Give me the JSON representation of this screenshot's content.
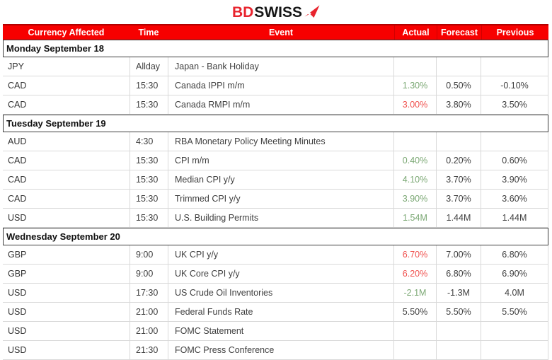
{
  "brand": {
    "name_red": "BD",
    "name_dark": "SWISS",
    "logo_icon": "bdswiss-arrow-icon"
  },
  "colors": {
    "header_bg": "#f70000",
    "header_text": "#ffffff",
    "positive": "#7ba874",
    "negative": "#f0524f",
    "neutral": "#404040",
    "grid": "#d9d9d9",
    "dayborder": "#3c3c3c",
    "brandred": "#e8242e"
  },
  "table": {
    "headers": [
      "Currency Affected",
      "Time",
      "Event",
      "Actual",
      "Forecast",
      "Previous"
    ],
    "sections": [
      {
        "day": "Monday September 18",
        "rows": [
          {
            "currency": "JPY",
            "time": "Allday",
            "event": "Japan - Bank Holiday",
            "actual": "",
            "forecast": "",
            "previous": "",
            "actual_state": "neutral"
          },
          {
            "currency": "CAD",
            "time": "15:30",
            "event": "Canada IPPI m/m",
            "actual": "1.30%",
            "forecast": "0.50%",
            "previous": "-0.10%",
            "actual_state": "positive"
          },
          {
            "currency": "CAD",
            "time": "15:30",
            "event": "Canada RMPI m/m",
            "actual": "3.00%",
            "forecast": "3.80%",
            "previous": "3.50%",
            "actual_state": "negative"
          }
        ]
      },
      {
        "day": "Tuesday September 19",
        "rows": [
          {
            "currency": "AUD",
            "time": "4:30",
            "event": "RBA Monetary Policy Meeting Minutes",
            "actual": "",
            "forecast": "",
            "previous": "",
            "actual_state": "neutral"
          },
          {
            "currency": "CAD",
            "time": "15:30",
            "event": "CPI m/m",
            "actual": "0.40%",
            "forecast": "0.20%",
            "previous": "0.60%",
            "actual_state": "positive"
          },
          {
            "currency": "CAD",
            "time": "15:30",
            "event": "Median CPI y/y",
            "actual": "4.10%",
            "forecast": "3.70%",
            "previous": "3.90%",
            "actual_state": "positive"
          },
          {
            "currency": "CAD",
            "time": "15:30",
            "event": "Trimmed CPI y/y",
            "actual": "3.90%",
            "forecast": "3.70%",
            "previous": "3.60%",
            "actual_state": "positive"
          },
          {
            "currency": "USD",
            "time": "15:30",
            "event": "U.S. Building Permits",
            "actual": "1.54M",
            "forecast": "1.44M",
            "previous": "1.44M",
            "actual_state": "positive"
          }
        ]
      },
      {
        "day": "Wednesday September 20",
        "rows": [
          {
            "currency": "GBP",
            "time": "9:00",
            "event": "UK CPI y/y",
            "actual": "6.70%",
            "forecast": "7.00%",
            "previous": "6.80%",
            "actual_state": "negative"
          },
          {
            "currency": "GBP",
            "time": "9:00",
            "event": "UK Core CPI y/y",
            "actual": "6.20%",
            "forecast": "6.80%",
            "previous": "6.90%",
            "actual_state": "negative"
          },
          {
            "currency": "USD",
            "time": "17:30",
            "event": "US Crude Oil Inventories",
            "actual": "-2.1M",
            "forecast": "-1.3M",
            "previous": "4.0M",
            "actual_state": "positive"
          },
          {
            "currency": "USD",
            "time": "21:00",
            "event": "Federal Funds Rate",
            "actual": "5.50%",
            "forecast": "5.50%",
            "previous": "5.50%",
            "actual_state": "neutral"
          },
          {
            "currency": "USD",
            "time": "21:00",
            "event": "FOMC Statement",
            "actual": "",
            "forecast": "",
            "previous": "",
            "actual_state": "neutral"
          },
          {
            "currency": "USD",
            "time": "21:30",
            "event": "FOMC Press Conference",
            "actual": "",
            "forecast": "",
            "previous": "",
            "actual_state": "neutral"
          }
        ]
      }
    ]
  }
}
